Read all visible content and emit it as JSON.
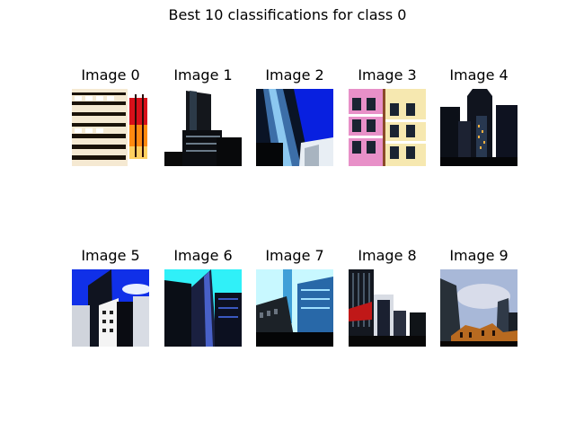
{
  "figure": {
    "title": "Best 10 classifications for class 0"
  },
  "panels": [
    {
      "title": "Image 0",
      "content": "photo of building facade with rows of windows"
    },
    {
      "title": "Image 1",
      "content": "photo of dark skyscraper against white sky"
    },
    {
      "title": "Image 2",
      "content": "photo of glass tower against blue sky"
    },
    {
      "title": "Image 3",
      "content": "photo of colorful apartment building facades"
    },
    {
      "title": "Image 4",
      "content": "photo of city skyline with tall towers"
    },
    {
      "title": "Image 5",
      "content": "photo of skyscrapers against blue sky with clouds"
    },
    {
      "title": "Image 6",
      "content": "photo of dark glass towers against cyan sky"
    },
    {
      "title": "Image 7",
      "content": "photo of glass buildings against bright sky"
    },
    {
      "title": "Image 8",
      "content": "photo of buildings with red roof against white sky"
    },
    {
      "title": "Image 9",
      "content": "photo of towers against cloudy grey-blue sky"
    }
  ]
}
